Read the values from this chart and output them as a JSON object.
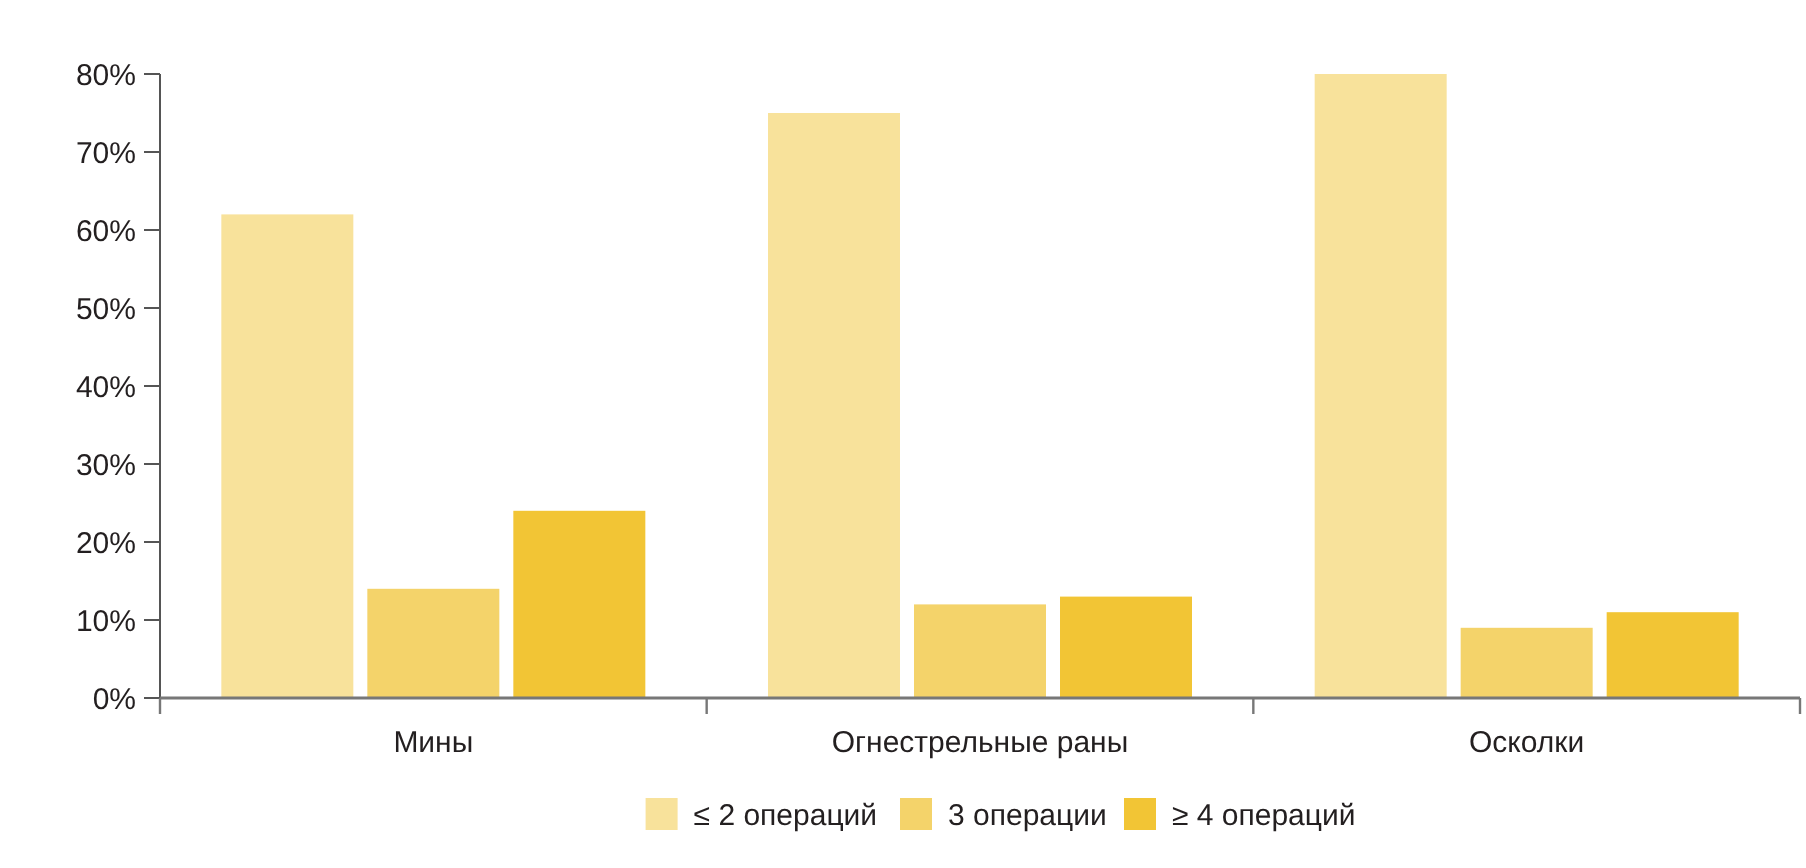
{
  "chart_data": {
    "type": "bar",
    "categories": [
      "Мины",
      "Огнестрельные раны",
      "Осколки"
    ],
    "series": [
      {
        "name": "≤ 2 операций",
        "color": "#f8e29b",
        "values": [
          62,
          75,
          80
        ]
      },
      {
        "name": "3 операции",
        "color": "#f4d36a",
        "values": [
          14,
          12,
          9
        ]
      },
      {
        "name": "≥ 4 операций",
        "color": "#f2c535",
        "values": [
          24,
          13,
          11
        ]
      }
    ],
    "ylim": [
      0,
      80
    ],
    "yticks": [
      {
        "value": 0,
        "label": "0%"
      },
      {
        "value": 10,
        "label": "10%"
      },
      {
        "value": 20,
        "label": "20%"
      },
      {
        "value": 30,
        "label": "30%"
      },
      {
        "value": 40,
        "label": "40%"
      },
      {
        "value": 50,
        "label": "50%"
      },
      {
        "value": 60,
        "label": "60%"
      },
      {
        "value": 70,
        "label": "70%"
      },
      {
        "value": 80,
        "label": "80%"
      }
    ],
    "grid": false,
    "legend": "bottom"
  }
}
